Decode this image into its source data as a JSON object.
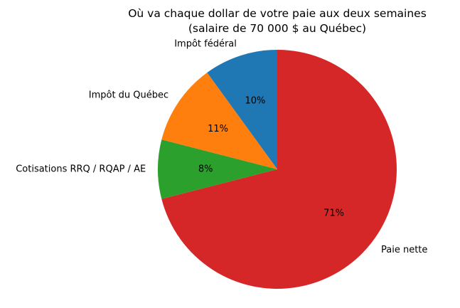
{
  "chart_data": {
    "type": "pie",
    "title_lines": [
      "Où va chaque dollar de votre paie aux deux semaines",
      "(salaire de 70 000 $ au Québec)"
    ],
    "start_angle_deg": 90,
    "direction": "counterclockwise",
    "slices": [
      {
        "label": "Impôt fédéral",
        "value": 10,
        "pct_label": "10%",
        "color": "#1f77b4"
      },
      {
        "label": "Impôt du Québec",
        "value": 11,
        "pct_label": "11%",
        "color": "#ff7f0e"
      },
      {
        "label": "Cotisations RRQ / RQAP / AE",
        "value": 8,
        "pct_label": "8%",
        "color": "#2ca02c"
      },
      {
        "label": "Paie nette",
        "value": 71,
        "pct_label": "71%",
        "color": "#d62728"
      }
    ]
  }
}
